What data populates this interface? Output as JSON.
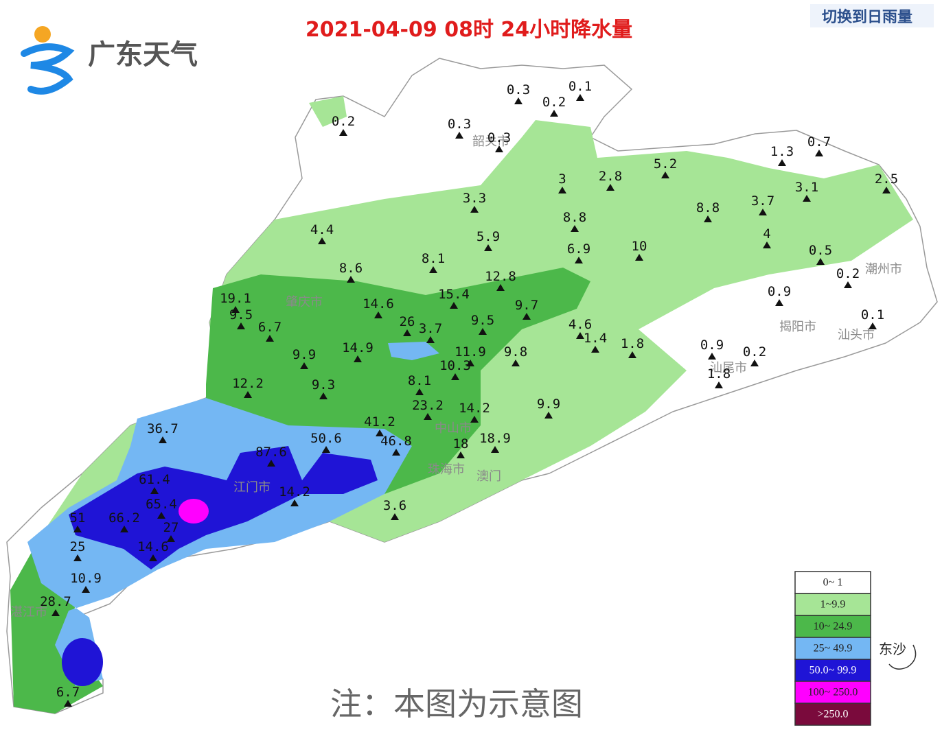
{
  "header": {
    "logo": "广东天气",
    "title": "2021-04-09 08时 24小时降水量",
    "switch_link": "切换到日雨量"
  },
  "stations": [
    "0.3",
    "0.1",
    "0.2",
    "0.3",
    "0.3",
    "0.2",
    "3",
    "2.8",
    "5.2",
    "1.3",
    "0.7",
    "3.1",
    "2.5",
    "3.7",
    "8.8",
    "3.3",
    "8.8",
    "4.4",
    "5.9",
    "4",
    "0.5",
    "6.9",
    "10",
    "8.1",
    "8.6",
    "12.8",
    "0.2",
    "19.1",
    "15.4",
    "14.6",
    "0.9",
    "9.7",
    "9.5",
    "9.5",
    "26",
    "3.7",
    "6.7",
    "0.1",
    "4.6",
    "1.4",
    "1.8",
    "0.9",
    "14.9",
    "11.9",
    "9.8",
    "9.9",
    "0.2",
    "10.3",
    "1.8",
    "8.1",
    "12.2",
    "9.3",
    "23.2",
    "14.2",
    "9.9",
    "41.2",
    "36.7",
    "50.6",
    "46.8",
    "18",
    "18.9",
    "87.6",
    "61.4",
    "14.2",
    "65.4",
    "3.6",
    "51",
    "66.2",
    "27",
    "14.6",
    "25",
    "10.9",
    "28.7",
    "6.7"
  ],
  "city_labels": [
    "肇庆市",
    "揭阳市",
    "汕头市",
    "潮州市",
    "汕尾市",
    "江门市",
    "中山市",
    "珠海市",
    "澳门",
    "湛江市",
    "韶关市"
  ],
  "legend": [
    {
      "label": "0~ 1",
      "color": "#ffffff"
    },
    {
      "label": "1~9.9",
      "color": "#a6e596"
    },
    {
      "label": "10~ 24.9",
      "color": "#4cb84a"
    },
    {
      "label": "25~ 49.9",
      "color": "#74b7f3"
    },
    {
      "label": "50.0~ 99.9",
      "color": "#1f14d6"
    },
    {
      "label": "100~ 250.0",
      "color": "#ff00ff"
    },
    {
      "label": ">250.0",
      "color": "#7a0a3c"
    }
  ],
  "island_label": "东沙",
  "note": "注：本图为示意图"
}
